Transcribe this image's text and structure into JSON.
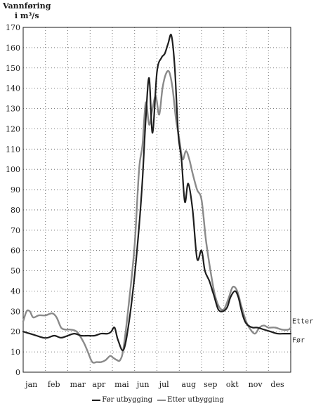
{
  "chart_data": {
    "type": "line",
    "ylabel_line1": "Vannføring",
    "ylabel_line2": "i m³/s",
    "ylim": [
      0,
      170
    ],
    "yticks": [
      0,
      10,
      20,
      30,
      40,
      50,
      60,
      70,
      80,
      90,
      100,
      110,
      120,
      130,
      140,
      150,
      160,
      170
    ],
    "months": [
      "jan",
      "feb",
      "mar",
      "apr",
      "mai",
      "jun",
      "jul",
      "aug",
      "sep",
      "okt",
      "nov",
      "des"
    ],
    "xlim": [
      0,
      12
    ],
    "grid": true,
    "legend_position": "bottom",
    "series": [
      {
        "name": "Før utbygging",
        "end_label": "Før",
        "color": "#1e1e1e",
        "x": [
          0,
          0.3,
          0.6,
          0.9,
          1.1,
          1.4,
          1.7,
          2.0,
          2.3,
          2.6,
          2.9,
          3.2,
          3.5,
          3.8,
          3.95,
          4.1,
          4.25,
          4.5,
          4.75,
          5.0,
          5.2,
          5.35,
          5.5,
          5.65,
          5.8,
          6.0,
          6.2,
          6.35,
          6.5,
          6.65,
          6.8,
          6.95,
          7.1,
          7.25,
          7.4,
          7.6,
          7.8,
          8.0,
          8.15,
          8.35,
          8.55,
          8.75,
          8.95,
          9.15,
          9.3,
          9.5,
          9.65,
          9.8,
          9.95,
          10.1,
          10.3,
          10.5,
          10.8,
          11.1,
          11.4,
          11.7,
          12.0
        ],
        "y": [
          20,
          19,
          18,
          17,
          17,
          18,
          17,
          18,
          19,
          18,
          18,
          18,
          19,
          19,
          20,
          22,
          16,
          11,
          25,
          48,
          72,
          95,
          125,
          145,
          118,
          148,
          155,
          157,
          162,
          166,
          150,
          118,
          105,
          84,
          93,
          80,
          56,
          60,
          50,
          45,
          38,
          31,
          30,
          32,
          37,
          40,
          37,
          30,
          25,
          23,
          22,
          22,
          21,
          20,
          19,
          19,
          19
        ]
      },
      {
        "name": "Etter utbygging",
        "end_label": "Etter",
        "color": "#8a8a8a",
        "x": [
          0,
          0.15,
          0.3,
          0.45,
          0.7,
          1.0,
          1.3,
          1.5,
          1.7,
          1.9,
          2.1,
          2.4,
          2.7,
          2.9,
          3.1,
          3.3,
          3.5,
          3.7,
          3.9,
          4.05,
          4.2,
          4.35,
          4.5,
          4.75,
          5.0,
          5.2,
          5.35,
          5.5,
          5.65,
          5.8,
          5.95,
          6.1,
          6.25,
          6.4,
          6.55,
          6.7,
          6.85,
          7.0,
          7.15,
          7.3,
          7.45,
          7.6,
          7.8,
          8.0,
          8.2,
          8.4,
          8.6,
          8.8,
          9.0,
          9.2,
          9.4,
          9.6,
          9.8,
          10.0,
          10.2,
          10.4,
          10.6,
          10.8,
          11.0,
          11.3,
          11.6,
          11.9,
          12.0
        ],
        "y": [
          25,
          30,
          30,
          27,
          28,
          28,
          29,
          27,
          22,
          21,
          21,
          20,
          15,
          10,
          5,
          5,
          5,
          6,
          8,
          7,
          6,
          6,
          12,
          35,
          63,
          100,
          112,
          133,
          122,
          130,
          136,
          127,
          140,
          147,
          148,
          140,
          125,
          115,
          105,
          109,
          105,
          98,
          90,
          85,
          65,
          50,
          38,
          32,
          31,
          36,
          42,
          40,
          32,
          25,
          21,
          19,
          22,
          23,
          22,
          22,
          21,
          21,
          22
        ]
      }
    ]
  }
}
